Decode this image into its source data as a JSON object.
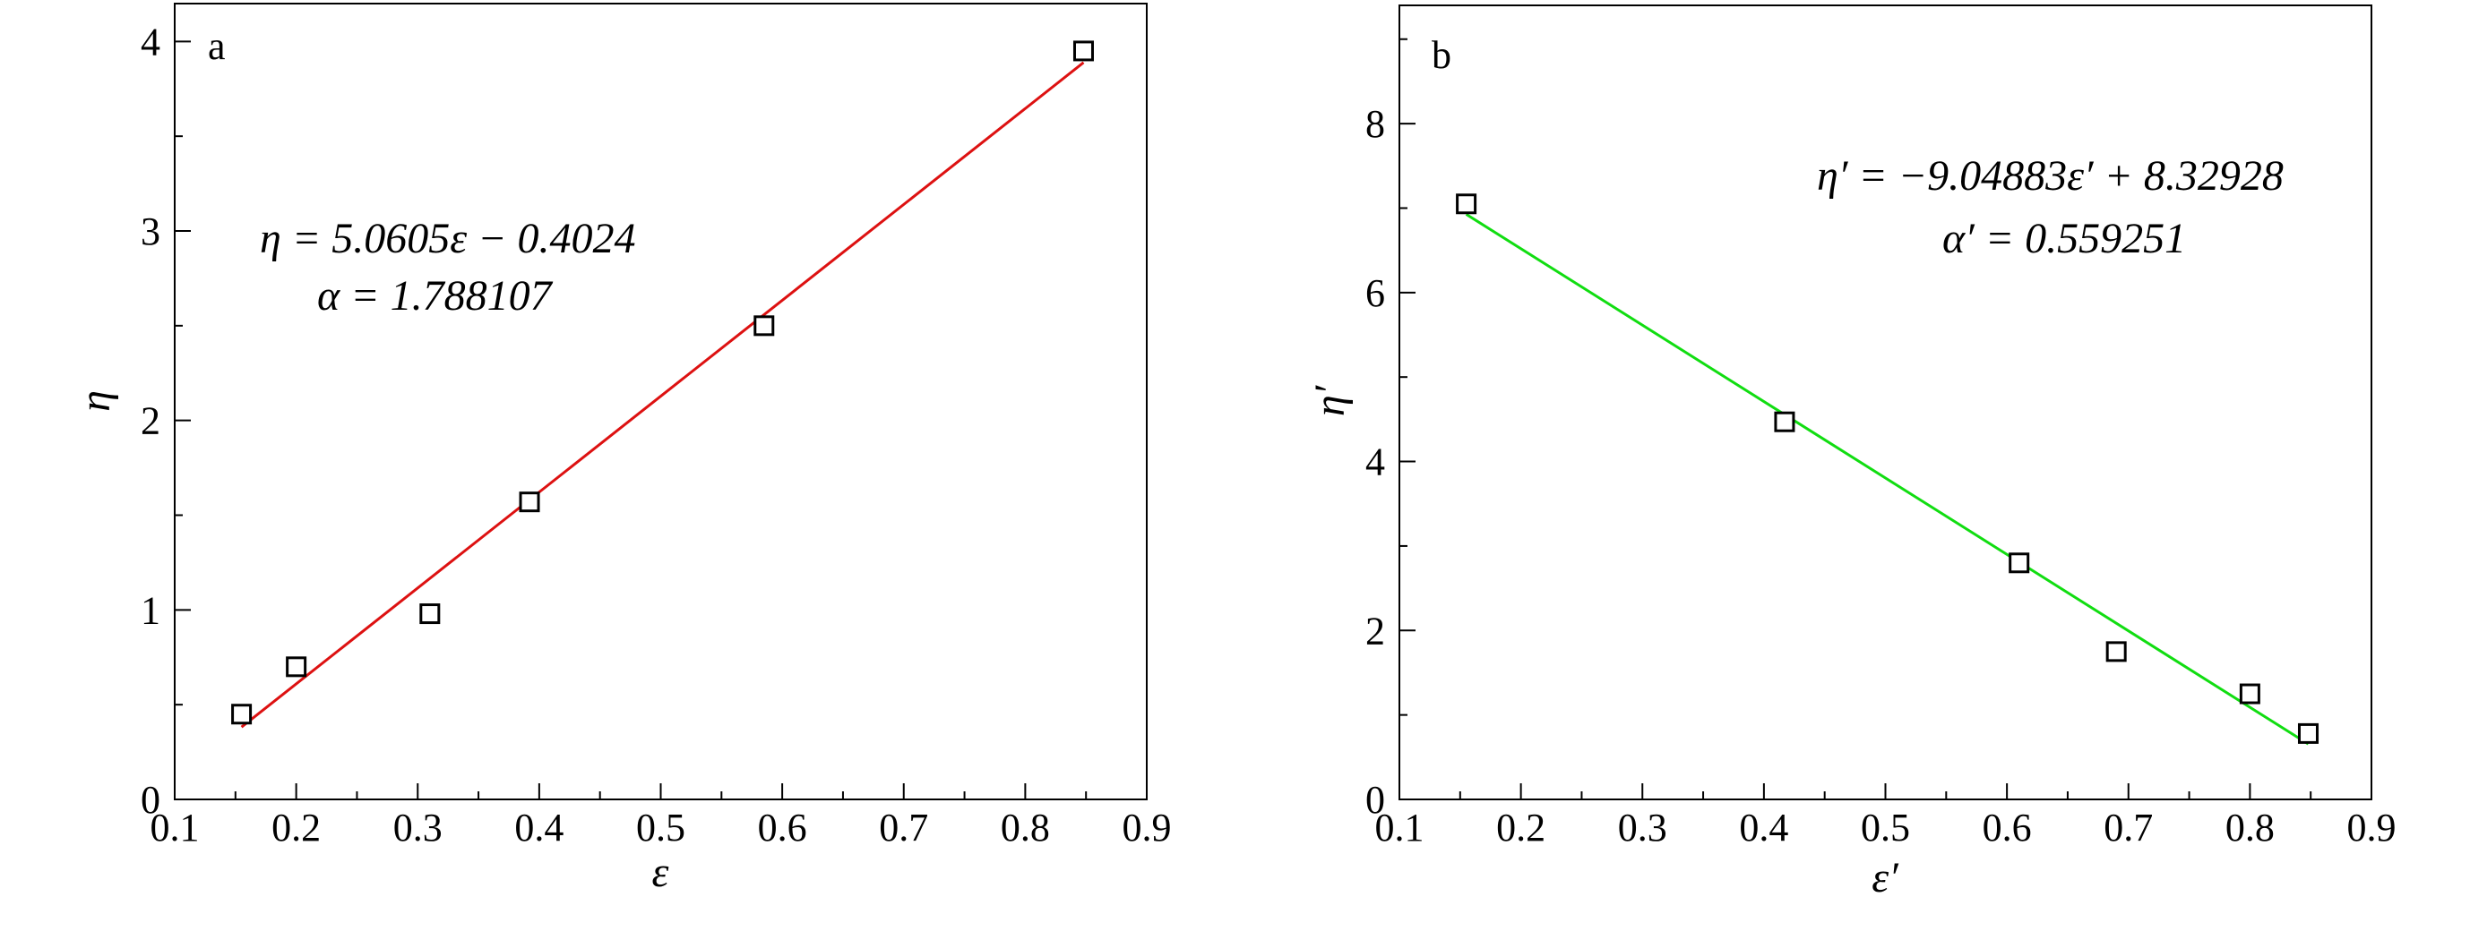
{
  "chart_data": [
    {
      "type": "scatter",
      "panel": "a",
      "xlabel": "ε",
      "ylabel": "η",
      "xlim": [
        0.1,
        0.9
      ],
      "ylim": [
        0,
        4.2
      ],
      "xticks": [
        "0.1",
        "0.2",
        "0.3",
        "0.4",
        "0.5",
        "0.6",
        "0.7",
        "0.8",
        "0.9"
      ],
      "yticks": [
        "0",
        "1",
        "2",
        "3",
        "4"
      ],
      "points": [
        {
          "x": 0.155,
          "y": 0.45
        },
        {
          "x": 0.2,
          "y": 0.7
        },
        {
          "x": 0.31,
          "y": 0.98
        },
        {
          "x": 0.392,
          "y": 1.57
        },
        {
          "x": 0.585,
          "y": 2.5
        },
        {
          "x": 0.848,
          "y": 3.95
        }
      ],
      "fit": {
        "slope": 5.0605,
        "intercept": -0.4024,
        "x_range": [
          0.155,
          0.848
        ],
        "color": "#dd1111"
      },
      "equation_line1": "η = 5.0605ε − 0.4024",
      "equation_line2": "α = 1.788107",
      "grid": false
    },
    {
      "type": "scatter",
      "panel": "b",
      "xlabel": "ε′",
      "ylabel": "η′",
      "xlim": [
        0.1,
        0.9
      ],
      "ylim": [
        0,
        9.4
      ],
      "xticks": [
        "0.1",
        "0.2",
        "0.3",
        "0.4",
        "0.5",
        "0.6",
        "0.7",
        "0.8",
        "0.9"
      ],
      "yticks": [
        "0",
        "2",
        "4",
        "6",
        "8"
      ],
      "points": [
        {
          "x": 0.155,
          "y": 7.05
        },
        {
          "x": 0.417,
          "y": 4.47
        },
        {
          "x": 0.61,
          "y": 2.8
        },
        {
          "x": 0.69,
          "y": 1.75
        },
        {
          "x": 0.8,
          "y": 1.25
        },
        {
          "x": 0.848,
          "y": 0.78
        }
      ],
      "fit": {
        "slope": -9.04883,
        "intercept": 8.32928,
        "x_range": [
          0.155,
          0.848
        ],
        "color": "#11dd11"
      },
      "equation_line1": "η′ = −9.04883ε′ + 8.32928",
      "equation_line2": "α′ = 0.559251",
      "grid": false
    }
  ]
}
